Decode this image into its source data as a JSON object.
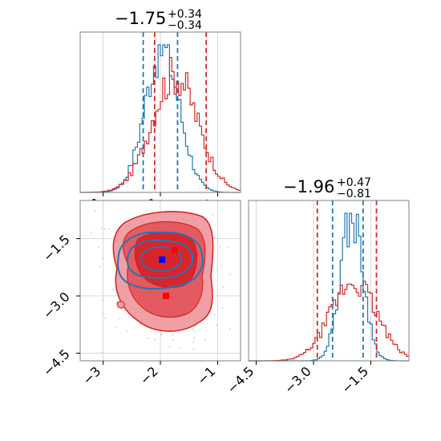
{
  "colors": {
    "series_a": "#1f77b4",
    "series_b": "#d62728",
    "fill_b_light": "#f0a0a4",
    "fill_b_mid": "#e35a60",
    "fill_b_dark": "#d8252b",
    "marker_a": "#0000ff",
    "marker_b": "#ff0000",
    "grid": "#d8d8d8",
    "axes": "#808080"
  },
  "chart_data": [
    {
      "type": "histogram",
      "panel": "top-left",
      "title": {
        "value": "−1.75",
        "plus": "+0.34",
        "minus": "−0.34"
      },
      "xlim": [
        -3.4,
        -0.6
      ],
      "x_ticks": [
        -3,
        -2,
        -1
      ],
      "x_tick_labels": [
        "−3",
        "−2",
        "−1"
      ],
      "quantile_lines_a": [
        -2.3,
        -1.7
      ],
      "quantile_lines_b": [
        -2.1,
        -1.2
      ],
      "series": [
        {
          "name": "",
          "color": "#1f77b4",
          "mean": -1.97,
          "sd": 0.3,
          "peak": 1.0
        },
        {
          "name": "",
          "color": "#d62728",
          "mean": -1.75,
          "sd": 0.4,
          "peak": 0.82
        }
      ]
    },
    {
      "type": "contour",
      "panel": "bottom-left",
      "xlim": [
        -3.4,
        -0.6
      ],
      "ylim": [
        -4.7,
        -0.5
      ],
      "x_ticks": [
        -3,
        -2,
        -1
      ],
      "x_tick_labels": [
        "−3",
        "−2",
        "−1"
      ],
      "y_ticks": [
        -1.5,
        -3.0,
        -4.5
      ],
      "y_tick_labels": [
        "−1.5",
        "−3.0",
        "−4.5"
      ],
      "markers": [
        {
          "x": -1.97,
          "y": -2.05,
          "color": "#0000ff"
        },
        {
          "x": -1.75,
          "y": -1.8,
          "color": "#ff0000"
        },
        {
          "x": -1.9,
          "y": -3.0,
          "color": "#ff0000"
        }
      ]
    },
    {
      "type": "histogram",
      "panel": "bottom-right",
      "title": {
        "value": "−1.96",
        "plus": "+0.47",
        "minus": "−0.81"
      },
      "xlim": [
        -4.7,
        -0.5
      ],
      "x_ticks": [
        -4.5,
        -3.0,
        -1.5
      ],
      "x_tick_labels": [
        "−4.5",
        "−3.0",
        "−1.5"
      ],
      "quantile_lines_a": [
        -2.5,
        -1.7
      ],
      "quantile_lines_b": [
        -2.9,
        -1.35
      ],
      "series": [
        {
          "name": "",
          "color": "#1f77b4",
          "mean": -2.0,
          "sd": 0.3,
          "peak": 1.0
        },
        {
          "name": "",
          "color": "#d62728",
          "mean": -1.95,
          "sd": 0.6,
          "peak": 0.55
        }
      ]
    }
  ]
}
